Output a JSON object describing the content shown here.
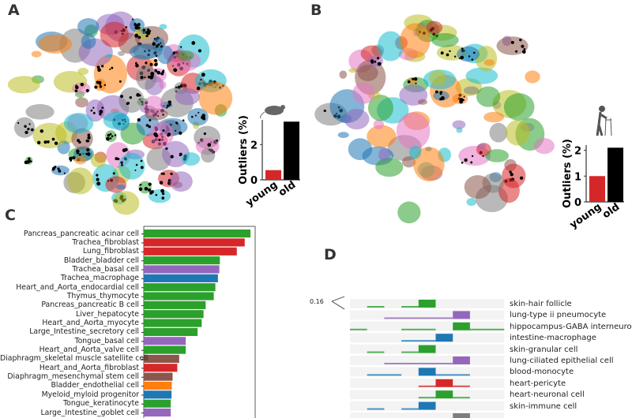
{
  "panels": {
    "a": "A",
    "b": "B",
    "c": "C",
    "d": "D"
  },
  "umap_colors": [
    "#1f77b4",
    "#ff7f0e",
    "#2ca02c",
    "#d62728",
    "#9467bd",
    "#8c564b",
    "#e377c2",
    "#7f7f7f",
    "#17becf",
    "#bcbd22"
  ],
  "chart_data": [
    {
      "type": "bar",
      "panel": "A",
      "icon": "mouse-icon",
      "ylabel": "Outliers (%)",
      "categories": [
        "young",
        "old"
      ],
      "values": [
        0.55,
        3.3
      ],
      "colors": [
        "#d62728",
        "#000000"
      ],
      "yticks": [
        0,
        2
      ],
      "ylim": [
        0,
        3.4
      ]
    },
    {
      "type": "bar",
      "panel": "B",
      "icon": "elderly-person-walker-icon",
      "ylabel": "Outliers (%)",
      "categories": [
        "young",
        "old"
      ],
      "values": [
        1.0,
        2.1
      ],
      "colors": [
        "#d62728",
        "#000000"
      ],
      "yticks": [
        0,
        1,
        2
      ],
      "ylim": [
        0,
        2.2
      ]
    },
    {
      "type": "bar",
      "panel": "C",
      "orientation": "horizontal",
      "xlim": [
        0,
        1.044
      ],
      "categories": [
        "Pancreas_pancreatic acinar cell",
        "Trachea_fibroblast",
        "Lung_fibroblast",
        "Bladder_bladder cell",
        "Trachea_basal cell",
        "Trachea_macrophage",
        "Heart_and_Aorta_endocardial cell",
        "Thymus_thymocyte",
        "Pancreas_pancreatic B cell",
        "Liver_hepatocyte",
        "Heart_and_Aorta_myocyte",
        "Large_Intestine_secretory cell",
        "Tongue_basal cell",
        "Heart_and_Aorta_valve cell",
        "Diaphragm_skeletal muscle satellite cell",
        "Heart_and_Aorta_fibroblast",
        "Diaphragm_mesenchymal stem cell",
        "Bladder_endothelial cell",
        "Myeloid_myloid progenitor",
        "Tongue_keratinocyte",
        "Large_Intestine_goblet cell"
      ],
      "values": [
        1.0,
        0.946,
        0.872,
        0.713,
        0.708,
        0.695,
        0.671,
        0.656,
        0.58,
        0.56,
        0.543,
        0.504,
        0.393,
        0.393,
        0.332,
        0.314,
        0.27,
        0.263,
        0.26,
        0.253,
        0.253
      ],
      "colors": [
        "#2ca02c",
        "#d62728",
        "#d62728",
        "#2ca02c",
        "#9467bd",
        "#1f77b4",
        "#2ca02c",
        "#2ca02c",
        "#2ca02c",
        "#2ca02c",
        "#2ca02c",
        "#2ca02c",
        "#9467bd",
        "#2ca02c",
        "#8c564b",
        "#d62728",
        "#8c564b",
        "#ff7f0e",
        "#1f77b4",
        "#2ca02c",
        "#9467bd"
      ]
    },
    {
      "type": "area",
      "panel": "D",
      "scale_annotation": "0.16",
      "rows": [
        {
          "label": "skin-hair follicle",
          "color": "#2ca02c",
          "peak_bin": 4,
          "minor": [
            1,
            3
          ]
        },
        {
          "label": "lung-type ii pneumocyte",
          "color": "#9467bd",
          "peak_bin": 6,
          "minor": [
            2,
            3,
            4,
            5
          ]
        },
        {
          "label": "hippocampus-GABA interneuron",
          "color": "#2ca02c",
          "peak_bin": 6,
          "minor": [
            0,
            3,
            4,
            7,
            8
          ]
        },
        {
          "label": "intestine-macrophage",
          "color": "#1f77b4",
          "peak_bin": 5,
          "minor": [
            3,
            4
          ]
        },
        {
          "label": "skin-granular cell",
          "color": "#2ca02c",
          "peak_bin": 4,
          "minor": [
            1,
            3
          ]
        },
        {
          "label": "lung-ciliated epithelial cell",
          "color": "#9467bd",
          "peak_bin": 6,
          "minor": [
            2,
            3,
            4,
            5
          ]
        },
        {
          "label": "blood-monocyte",
          "color": "#1f77b4",
          "peak_bin": 4,
          "minor": [
            1,
            2,
            5,
            6
          ]
        },
        {
          "label": "heart-pericyte",
          "color": "#d62728",
          "peak_bin": 5,
          "minor": [
            4,
            6
          ]
        },
        {
          "label": "heart-neuronal cell",
          "color": "#2ca02c",
          "peak_bin": 5,
          "minor": [
            4,
            6
          ]
        },
        {
          "label": "skin-immune cell",
          "color": "#1f77b4",
          "peak_bin": 4,
          "minor": [
            1,
            3
          ]
        },
        {
          "label": "",
          "color": "#7f7f7f",
          "peak_bin": 6,
          "minor": []
        }
      ]
    }
  ]
}
